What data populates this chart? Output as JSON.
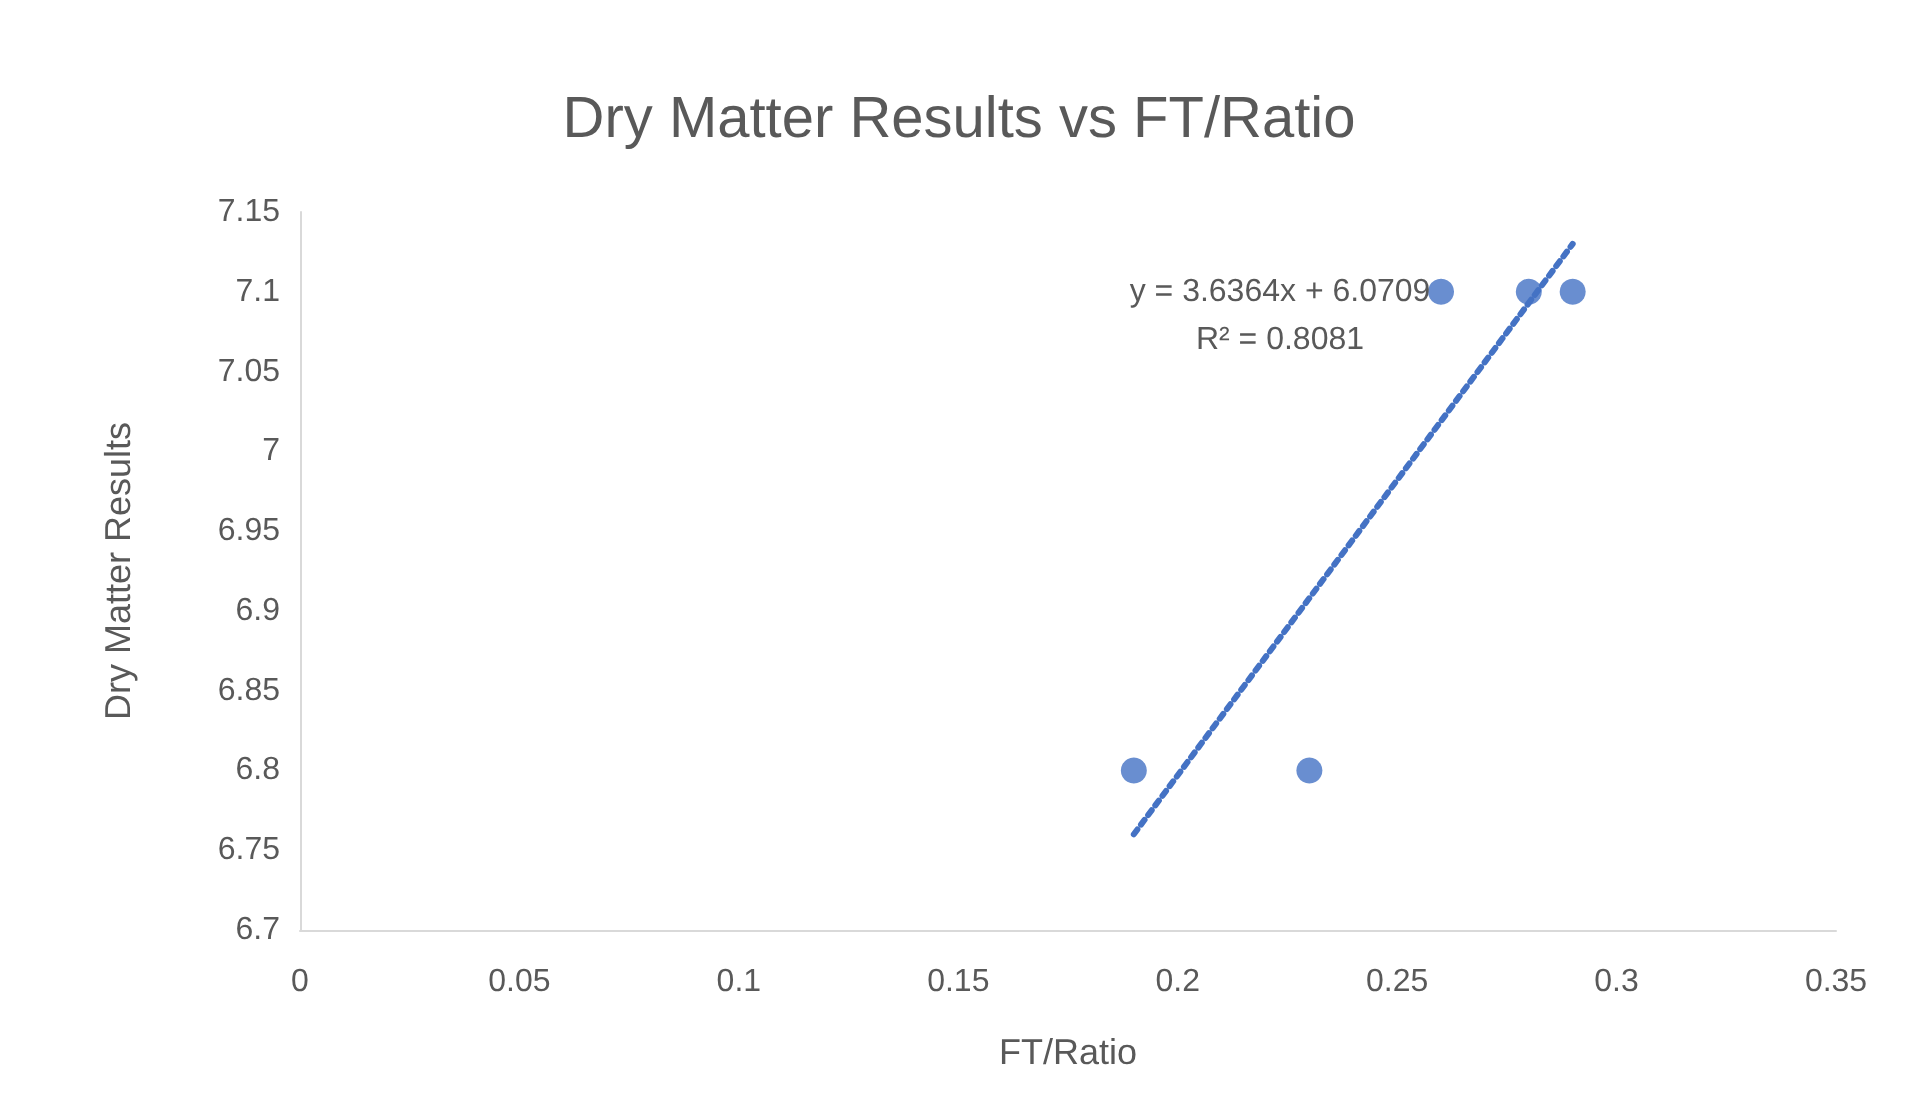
{
  "chart_data": {
    "type": "scatter",
    "title": "Dry Matter Results vs FT/Ratio",
    "xlabel": "FT/Ratio",
    "ylabel": "Dry Matter Results",
    "series": [
      {
        "color": "#4472c4",
        "x": [
          0.19,
          0.23,
          0.26,
          0.28,
          0.29
        ],
        "values": [
          6.8,
          6.8,
          7.1,
          7.1,
          7.1
        ],
        "marker": "circle"
      },
      {
        "type": "line",
        "color": "#4472c4",
        "x": [
          0.19,
          0.29
        ],
        "values": [
          6.76,
          7.13
        ],
        "line_style": "dotted",
        "marker": "none"
      }
    ],
    "annotations": [
      "y = 3.6364x + 6.0709",
      "R² = 0.8081"
    ],
    "xlim": [
      0,
      0.35
    ],
    "xticks": [
      0,
      0.05,
      0.1,
      0.15,
      0.2,
      0.25,
      0.3,
      0.35
    ],
    "ylim": [
      6.7,
      7.15
    ],
    "yticks": [
      6.7,
      6.75,
      6.8,
      6.85,
      6.9,
      6.95,
      7,
      7.05,
      7.1,
      7.15
    ],
    "grid": false
  }
}
